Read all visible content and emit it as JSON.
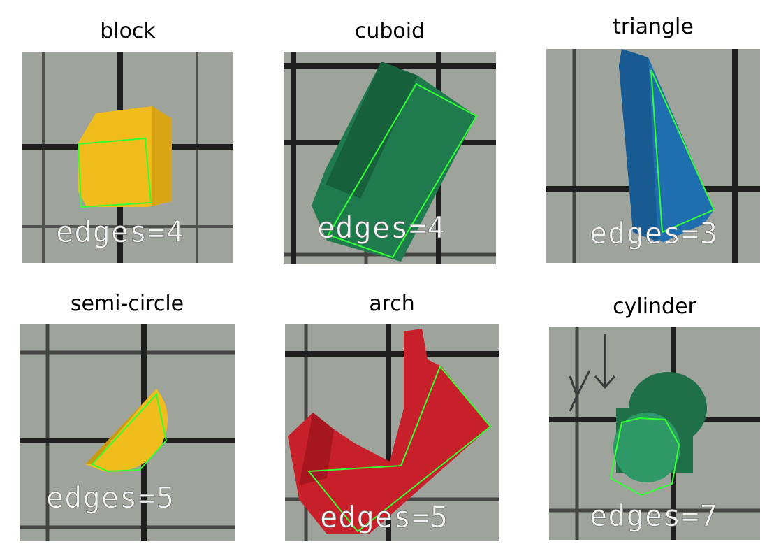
{
  "panels": [
    {
      "title": "block",
      "edges_label": "edges=4",
      "edges": 4,
      "object_color": "#f0bd1c"
    },
    {
      "title": "cuboid",
      "edges_label": "edges=4",
      "edges": 4,
      "object_color": "#1f7a4e"
    },
    {
      "title": "triangle",
      "edges_label": "edges=3",
      "edges": 3,
      "object_color": "#1f6fb0"
    },
    {
      "title": "semi-circle",
      "edges_label": "edges=5",
      "edges": 5,
      "object_color": "#f0bd1c"
    },
    {
      "title": "arch",
      "edges_label": "edges=5",
      "edges": 5,
      "object_color": "#c8202a"
    },
    {
      "title": "cylinder",
      "edges_label": "edges=7",
      "edges": 7,
      "object_color": "#2a8a5c"
    }
  ],
  "contour_color": "#33ff33",
  "background_color": "#9ea39b",
  "grid_line_color": "#1e1e1e"
}
